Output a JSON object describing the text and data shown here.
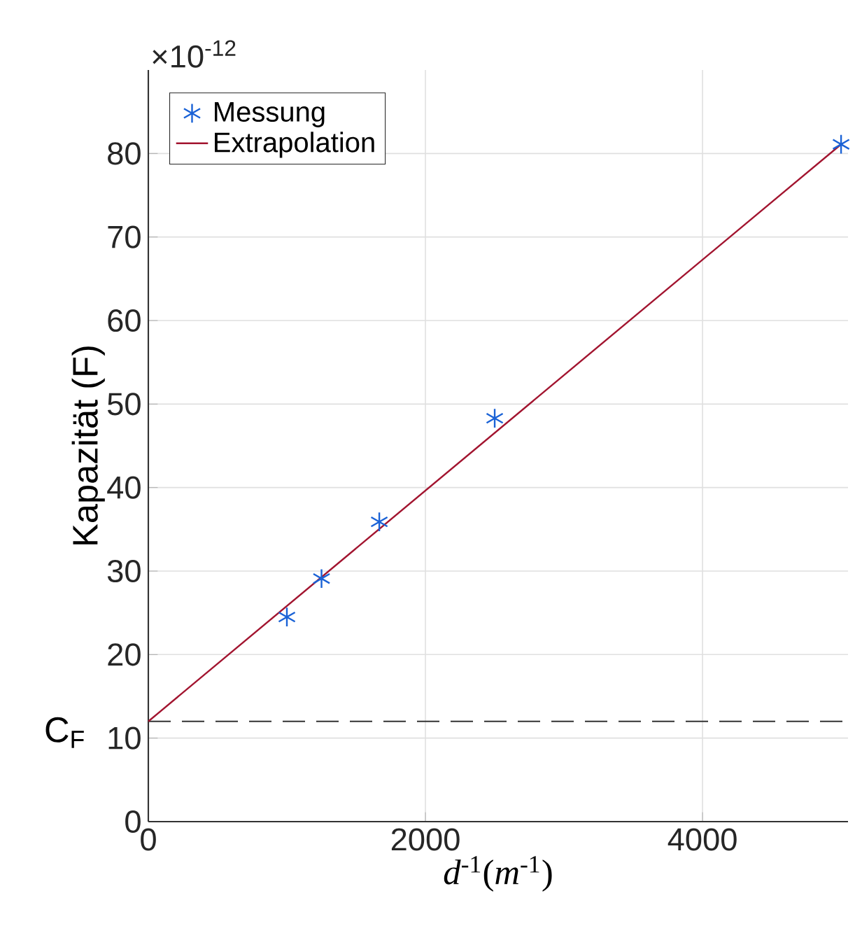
{
  "chart_data": {
    "type": "scatter",
    "xlabel": "*d*$^{-1}$(*m*$^{-1}$)",
    "ylabel": "Kapazität (F)",
    "annotations": [
      "×10$^{-12}$"
    ],
    "series": [
      {
        "name": "Messung",
        "marker": "cross",
        "color": "#1a62d6",
        "x": [
          1000,
          1250,
          1667,
          2500,
          5000
        ],
        "values": [
          24.5,
          29.1,
          35.9,
          48.3,
          81.1
        ]
      },
      {
        "name": "Extrapolation",
        "type": "line",
        "color": "#a2142f",
        "x": [
          0,
          5000
        ],
        "values": [
          12.0,
          81.1
        ]
      }
    ],
    "ref_lines": [
      {
        "axis": "y",
        "value": 12,
        "label": "C$_{F}$",
        "color": "#333333",
        "line_style": "dashed"
      }
    ],
    "xlim": [
      0,
      5050
    ],
    "ylim": [
      0,
      90
    ],
    "xticks": [
      0,
      2000,
      4000
    ],
    "yticks": [
      0,
      10,
      20,
      30,
      40,
      50,
      60,
      70,
      80
    ],
    "grid": true,
    "legend": "top left"
  }
}
